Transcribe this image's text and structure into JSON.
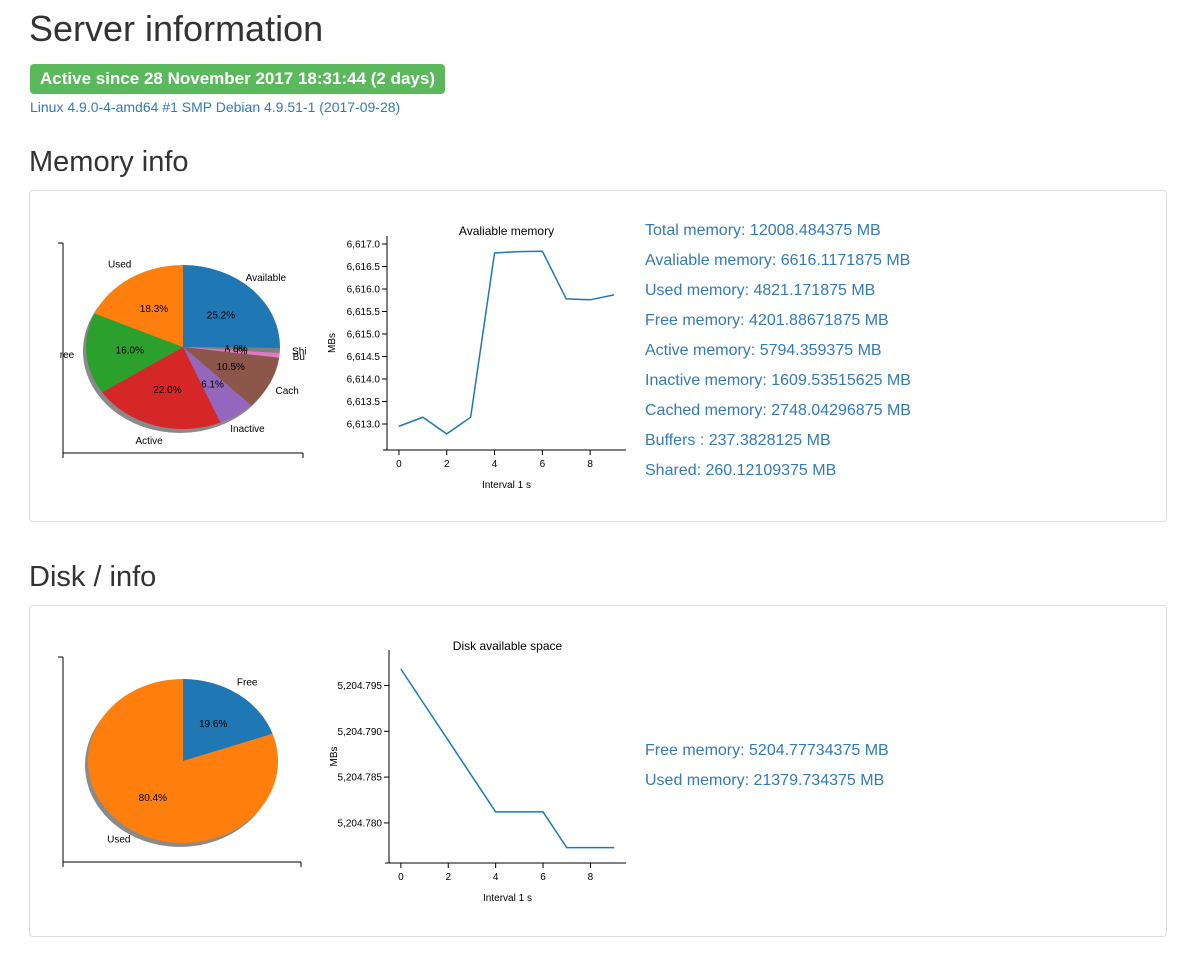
{
  "header": {
    "title": "Server information",
    "uptime_badge": "Active since 28 November 2017 18:31:44 (2 days)",
    "kernel": "Linux 4.9.0-4-amd64 #1 SMP Debian 4.9.51-1 (2017-09-28)"
  },
  "memory": {
    "section_title": "Memory info",
    "stats": [
      "Total memory: 12008.484375 MB",
      "Avaliable memory: 6616.1171875 MB",
      "Used memory: 4821.171875 MB",
      "Free memory: 4201.88671875 MB",
      "Active memory: 5794.359375 MB",
      "Inactive memory: 1609.53515625 MB",
      "Cached memory: 2748.04296875 MB",
      "Buffers : 237.3828125 MB",
      "Shared: 260.12109375 MB"
    ]
  },
  "disk": {
    "section_title": "Disk / info",
    "stats": [
      "Free memory: 5204.77734375 MB",
      "Used memory: 21379.734375 MB"
    ]
  },
  "colors": {
    "blue": "#1f77b4",
    "orange": "#ff7f0e",
    "green": "#2ca02c",
    "red": "#d62728",
    "purple": "#9467bd",
    "brown": "#8c564b",
    "pink": "#e377c2",
    "grey": "#7f7f7f",
    "link": "#337ab7",
    "badge": "#5cb85c"
  },
  "chart_data": [
    {
      "id": "memory-pie",
      "type": "pie",
      "slices": [
        {
          "label": "Available",
          "percent_label": "25.2%",
          "value": 25.2,
          "color": "#1f77b4"
        },
        {
          "label": "Shared",
          "short_label": "Shi",
          "percent_label": "1.0%",
          "value": 1.0,
          "color": "#7f7f7f"
        },
        {
          "label": "Buffers",
          "short_label": "Bu",
          "percent_label": "0.9%",
          "value": 0.9,
          "color": "#e377c2"
        },
        {
          "label": "Cached",
          "short_label": "Cach",
          "percent_label": "10.5%",
          "value": 10.5,
          "color": "#8c564b"
        },
        {
          "label": "Inactive",
          "percent_label": "6.1%",
          "value": 6.1,
          "color": "#9467bd"
        },
        {
          "label": "Active",
          "percent_label": "22.0%",
          "value": 22.0,
          "color": "#d62728"
        },
        {
          "label": "Free",
          "short_label": "ree",
          "percent_label": "16.0%",
          "value": 16.0,
          "color": "#2ca02c"
        },
        {
          "label": "Used",
          "percent_label": "18.3%",
          "value": 18.3,
          "color": "#ff7f0e"
        }
      ]
    },
    {
      "id": "memory-line",
      "type": "line",
      "title": "Avaliable memory",
      "xlabel": "Interval 1 s",
      "ylabel": "MBs",
      "xlim": [
        -0.5,
        9.5
      ],
      "ylim": [
        6612.6,
        6617.0
      ],
      "xticks": [
        0,
        2,
        4,
        6,
        8
      ],
      "yticks": [
        6613.0,
        6613.5,
        6614.0,
        6614.5,
        6615.0,
        6615.5,
        6616.0,
        6616.5,
        6617.0
      ],
      "ytick_labels": [
        "6,613.0",
        "6,613.5",
        "6,614.0",
        "6,614.5",
        "6,615.0",
        "6,615.5",
        "6,616.0",
        "6,616.5",
        "6,617.0"
      ],
      "x": [
        0,
        1,
        2,
        3,
        4,
        5,
        6,
        7,
        8,
        9
      ],
      "y": [
        6612.95,
        6613.15,
        6612.78,
        6613.15,
        6616.8,
        6616.83,
        6616.84,
        6615.78,
        6615.76,
        6615.87
      ],
      "color": "#1f77b4"
    },
    {
      "id": "disk-pie",
      "type": "pie",
      "slices": [
        {
          "label": "Free",
          "percent_label": "19.6%",
          "value": 19.6,
          "color": "#1f77b4"
        },
        {
          "label": "Used",
          "percent_label": "80.4%",
          "value": 80.4,
          "color": "#ff7f0e"
        }
      ]
    },
    {
      "id": "disk-line",
      "type": "line",
      "title": "Disk available space",
      "xlabel": "Interval 1 s",
      "ylabel": "MBs",
      "xlim": [
        -0.5,
        9.5
      ],
      "ylim": [
        5204.7765,
        5204.798
      ],
      "xticks": [
        0,
        2,
        4,
        6,
        8
      ],
      "yticks": [
        5204.78,
        5204.785,
        5204.79,
        5204.795
      ],
      "ytick_labels": [
        "5,204.780",
        "5,204.785",
        "5,204.790",
        "5,204.795"
      ],
      "x": [
        0,
        1,
        2,
        3,
        4,
        5,
        6,
        7,
        8,
        9
      ],
      "y": [
        5204.7968,
        5204.7929,
        5204.789,
        5204.7851,
        5204.7812,
        5204.7812,
        5204.7812,
        5204.7773,
        5204.7773,
        5204.7773
      ],
      "color": "#1f77b4"
    }
  ]
}
